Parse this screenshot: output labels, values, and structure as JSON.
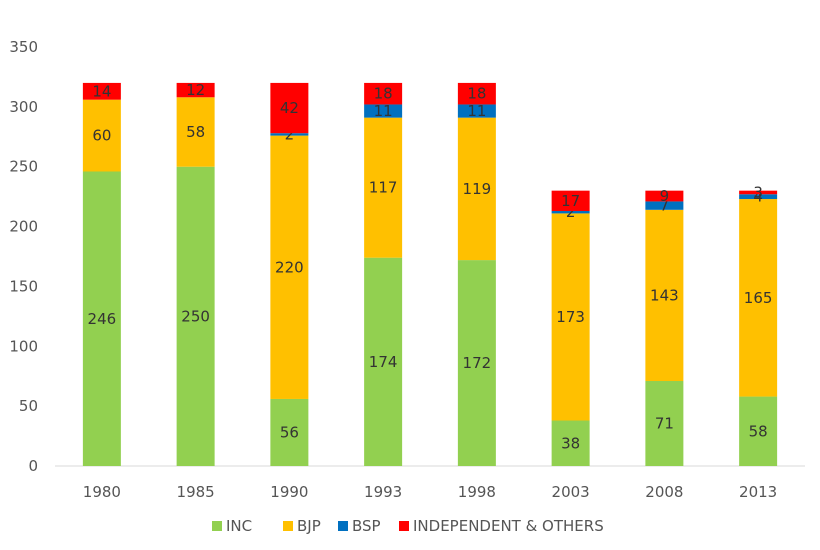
{
  "chart_data": {
    "type": "bar",
    "stacked": true,
    "categories": [
      "1980",
      "1985",
      "1990",
      "1993",
      "1998",
      "2003",
      "2008",
      "2013"
    ],
    "series": [
      {
        "name": "INC",
        "color": "#92d050",
        "values": [
          246,
          250,
          56,
          174,
          172,
          38,
          71,
          58
        ]
      },
      {
        "name": "BJP",
        "color": "#ffc000",
        "values": [
          60,
          58,
          220,
          117,
          119,
          173,
          143,
          165
        ]
      },
      {
        "name": "BSP",
        "color": "#0070c0",
        "values": [
          0,
          0,
          2,
          11,
          11,
          2,
          7,
          4
        ]
      },
      {
        "name": "INDEPENDENT & OTHERS",
        "color": "#ff0000",
        "values": [
          14,
          12,
          42,
          18,
          18,
          17,
          9,
          3
        ]
      }
    ],
    "data_labels": [
      [
        "246",
        "250",
        "56",
        "174",
        "172",
        "38",
        "71",
        "58"
      ],
      [
        "60",
        "58",
        "220",
        "117",
        "119",
        "173",
        "143",
        "165"
      ],
      [
        "",
        "",
        "2",
        "11",
        "11",
        "2",
        "7",
        "4"
      ],
      [
        "14",
        "12",
        "42",
        "18",
        "18",
        "17",
        "9",
        "3"
      ]
    ],
    "yticks": [
      "0",
      "50",
      "100",
      "150",
      "200",
      "250",
      "300",
      "350"
    ],
    "ylim": [
      0,
      350
    ],
    "grid": false,
    "legend_position": "bottom"
  }
}
